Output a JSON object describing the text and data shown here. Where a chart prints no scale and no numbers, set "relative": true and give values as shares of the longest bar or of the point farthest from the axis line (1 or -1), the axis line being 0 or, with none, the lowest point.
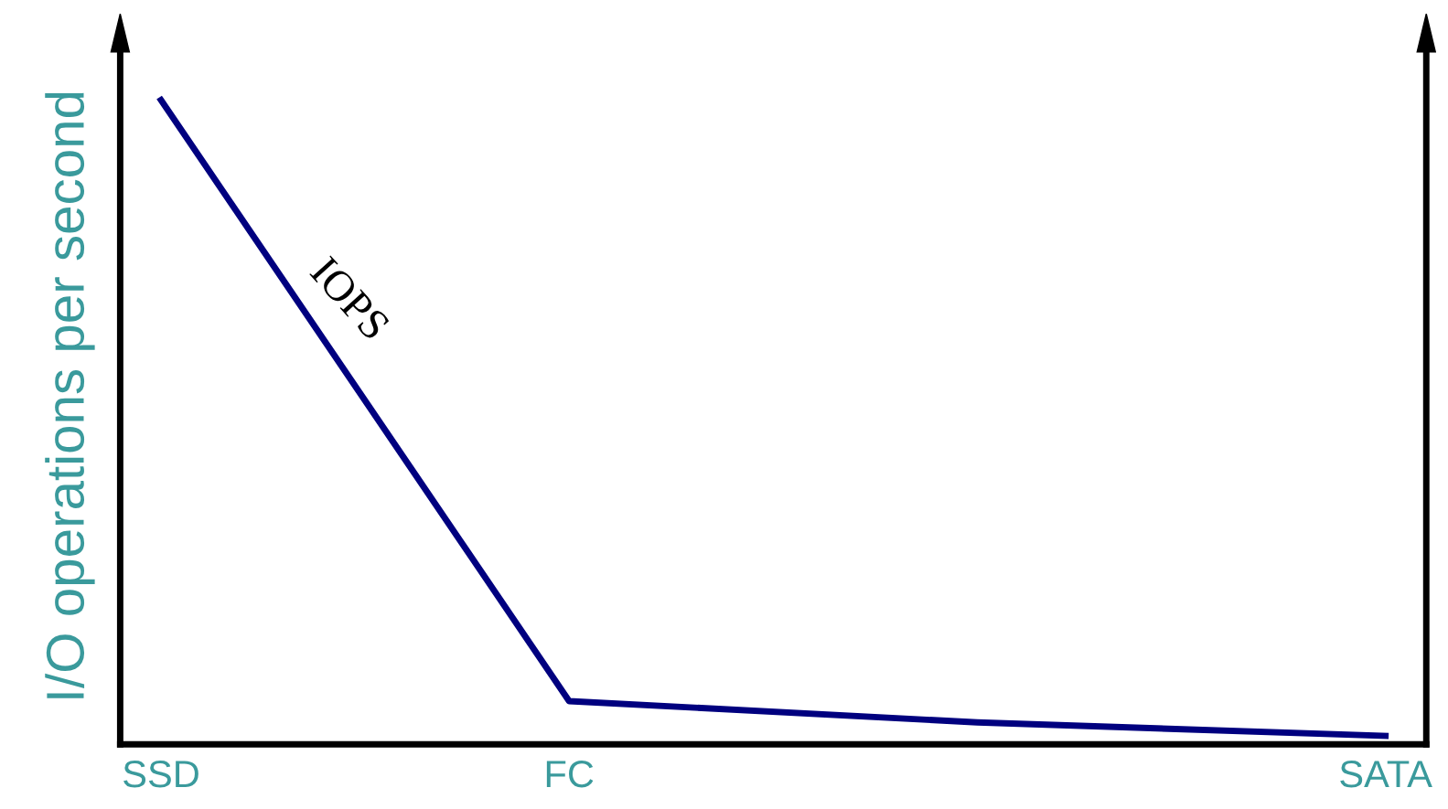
{
  "chart_data": {
    "type": "line",
    "relative": true,
    "ylabel": "I/O operations per second",
    "categories": [
      "SSD",
      "FC",
      null,
      "SATA"
    ],
    "series": [
      {
        "name": "IOPS",
        "color": "#00007f",
        "values": [
          1,
          0.067,
          0.034,
          0.013
        ]
      }
    ],
    "grid": false,
    "legend": false,
    "marker": "none",
    "line_style": "solid"
  }
}
